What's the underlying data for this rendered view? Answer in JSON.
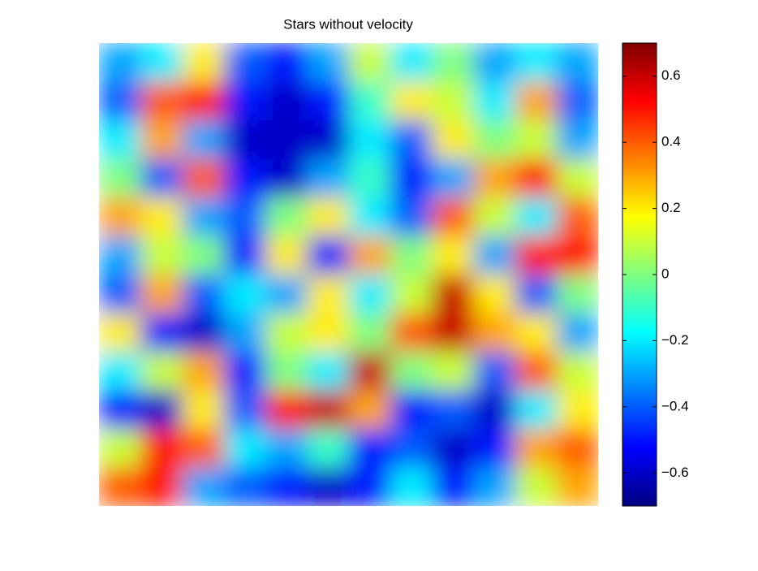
{
  "chart_data": {
    "type": "heatmap",
    "title": "Stars without velocity",
    "colormap": "jet",
    "zlim": [
      -0.7,
      0.7
    ],
    "zticks": [
      {
        "value": -0.6,
        "label": "−0.6"
      },
      {
        "value": -0.4,
        "label": "−0.4"
      },
      {
        "value": -0.2,
        "label": "−0.2"
      },
      0,
      0.2,
      0.4,
      0.6
    ],
    "z": [
      [
        -0.3,
        -0.2,
        0.2,
        -0.4,
        -0.5,
        -0.3,
        0.1,
        -0.2,
        0.0,
        -0.3,
        -0.2,
        -0.3
      ],
      [
        -0.4,
        0.4,
        0.5,
        -0.5,
        -0.6,
        -0.5,
        -0.1,
        0.2,
        0.1,
        -0.2,
        0.3,
        -0.4
      ],
      [
        -0.2,
        0.3,
        -0.3,
        -0.6,
        -0.6,
        -0.6,
        -0.2,
        -0.4,
        0.2,
        0.0,
        0.1,
        -0.3
      ],
      [
        0.0,
        -0.4,
        0.4,
        -0.5,
        -0.6,
        -0.3,
        -0.1,
        -0.5,
        -0.3,
        0.3,
        0.5,
        0.1
      ],
      [
        0.3,
        0.2,
        -0.3,
        -0.4,
        0.0,
        0.2,
        -0.2,
        -0.4,
        0.4,
        0.1,
        -0.2,
        0.4
      ],
      [
        -0.3,
        0.1,
        0.0,
        -0.5,
        0.2,
        -0.5,
        0.3,
        0.0,
        0.2,
        -0.3,
        0.5,
        0.5
      ],
      [
        -0.4,
        0.3,
        -0.4,
        -0.2,
        -0.3,
        0.2,
        -0.2,
        0.1,
        0.6,
        0.2,
        -0.4,
        0.0
      ],
      [
        0.2,
        -0.5,
        -0.6,
        -0.3,
        0.1,
        0.2,
        0.0,
        0.4,
        0.6,
        0.3,
        0.2,
        -0.3
      ],
      [
        -0.2,
        0.1,
        0.3,
        -0.5,
        0.0,
        -0.2,
        0.6,
        0.0,
        0.1,
        -0.4,
        0.4,
        0.1
      ],
      [
        -0.5,
        -0.6,
        0.2,
        -0.4,
        0.5,
        0.6,
        0.3,
        -0.5,
        -0.4,
        -0.6,
        -0.2,
        0.2
      ],
      [
        0.1,
        0.5,
        0.4,
        -0.2,
        -0.3,
        -0.1,
        -0.5,
        -0.4,
        -0.6,
        -0.5,
        0.3,
        0.4
      ],
      [
        0.4,
        0.5,
        -0.3,
        -0.4,
        -0.5,
        -0.6,
        -0.5,
        -0.2,
        -0.5,
        -0.3,
        0.1,
        0.3
      ]
    ]
  }
}
